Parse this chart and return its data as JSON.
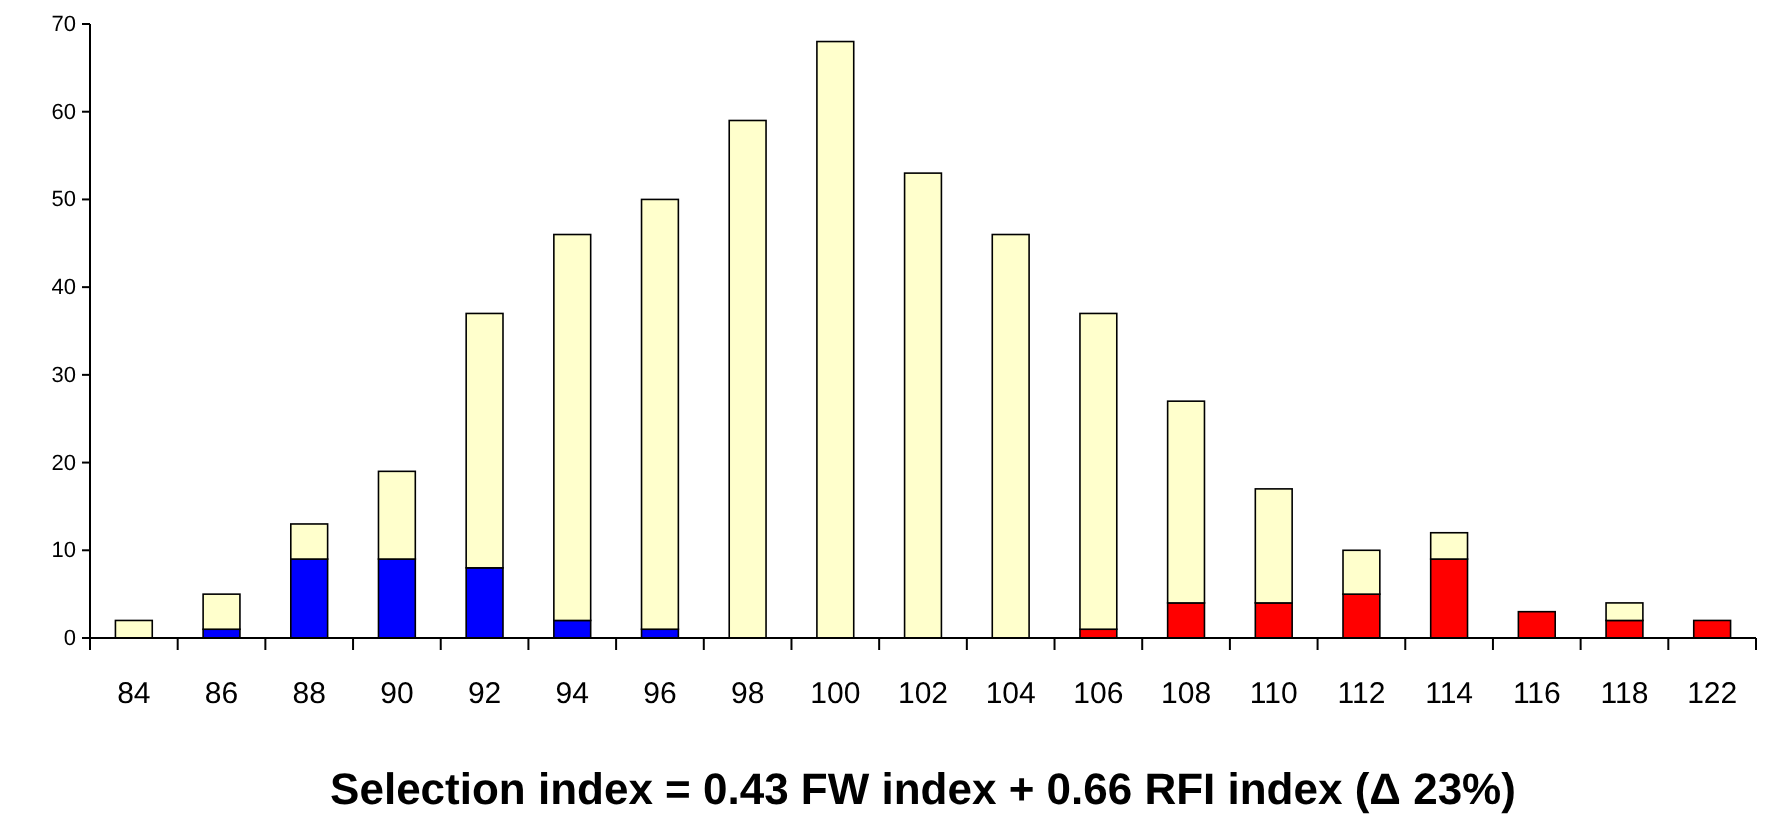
{
  "chart_data": {
    "type": "bar",
    "stacked": true,
    "xlabel": "Selection index = 0.43 FW index + 0.66 RFI index (Δ 23%)",
    "categories": [
      "84",
      "86",
      "88",
      "90",
      "92",
      "94",
      "96",
      "98",
      "100",
      "102",
      "104",
      "106",
      "108",
      "110",
      "112",
      "114",
      "116",
      "118",
      "122"
    ],
    "series": [
      {
        "color": "#0000ff",
        "values": [
          0,
          1,
          9,
          9,
          8,
          2,
          1,
          0,
          0,
          0,
          0,
          0,
          0,
          0,
          0,
          0,
          0,
          0,
          0
        ]
      },
      {
        "color": "#ff0000",
        "values": [
          0,
          0,
          0,
          0,
          0,
          0,
          0,
          0,
          0,
          0,
          0,
          1,
          4,
          4,
          5,
          9,
          3,
          2,
          2
        ]
      },
      {
        "color": "#ffffcc",
        "values": [
          2,
          4,
          4,
          10,
          29,
          44,
          49,
          59,
          68,
          53,
          46,
          36,
          23,
          13,
          5,
          3,
          0,
          2,
          0
        ]
      }
    ],
    "ylim": [
      0,
      70
    ],
    "yticks": [
      0,
      10,
      20,
      30,
      40,
      50,
      60,
      70
    ]
  }
}
